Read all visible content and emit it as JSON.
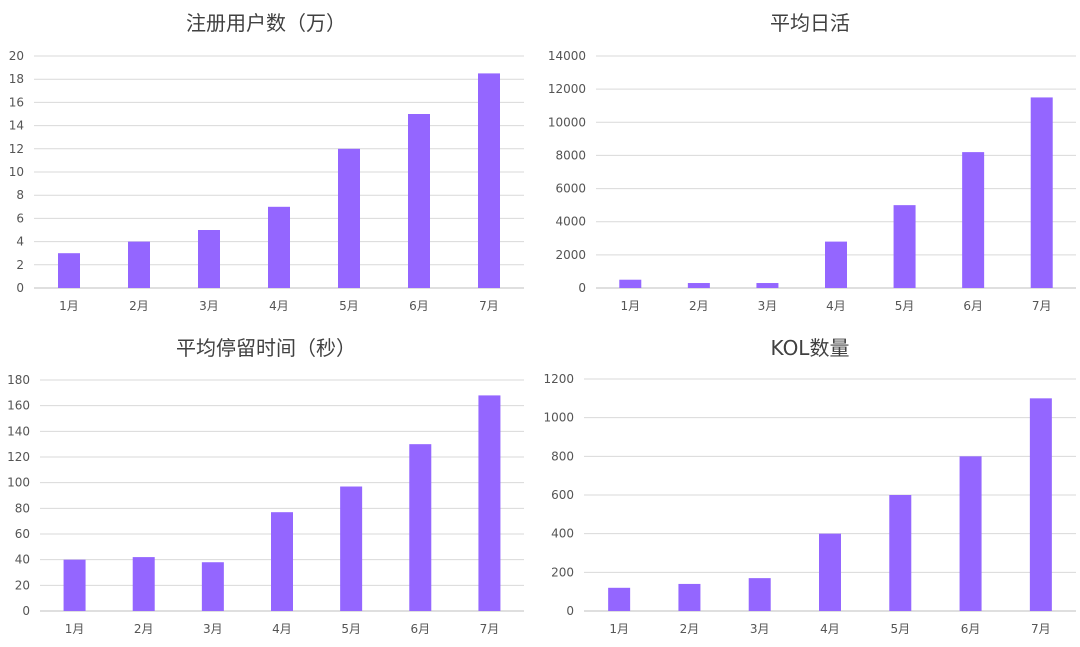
{
  "colors": {
    "bar": "#9466FF",
    "grid": "#D9D9D9",
    "text": "#404040"
  },
  "chart_data": [
    {
      "type": "bar",
      "title": "注册用户数（万）",
      "categories": [
        "1月",
        "2月",
        "3月",
        "4月",
        "5月",
        "6月",
        "7月"
      ],
      "values": [
        3,
        4,
        5,
        7,
        12,
        15,
        18.5
      ],
      "ylim": [
        0,
        20
      ],
      "yticks": [
        "0",
        "2",
        "4",
        "6",
        "8",
        "10",
        "12",
        "14",
        "16",
        "18",
        "20"
      ],
      "grid": true
    },
    {
      "type": "bar",
      "title": "平均日活",
      "categories": [
        "1月",
        "2月",
        "3月",
        "4月",
        "5月",
        "6月",
        "7月"
      ],
      "values": [
        500,
        300,
        300,
        2800,
        5000,
        8200,
        11500
      ],
      "ylim": [
        0,
        14000
      ],
      "yticks": [
        "0",
        "2000",
        "4000",
        "6000",
        "8000",
        "10000",
        "12000",
        "14000"
      ],
      "grid": true
    },
    {
      "type": "bar",
      "title": "平均停留时间（秒）",
      "categories": [
        "1月",
        "2月",
        "3月",
        "4月",
        "5月",
        "6月",
        "7月"
      ],
      "values": [
        40,
        42,
        38,
        77,
        97,
        130,
        168
      ],
      "ylim": [
        0,
        180
      ],
      "yticks": [
        "0",
        "20",
        "40",
        "60",
        "80",
        "100",
        "120",
        "140",
        "160",
        "180"
      ],
      "grid": true
    },
    {
      "type": "bar",
      "title": "KOL数量",
      "categories": [
        "1月",
        "2月",
        "3月",
        "4月",
        "5月",
        "6月",
        "7月"
      ],
      "values": [
        120,
        140,
        170,
        400,
        600,
        800,
        1100
      ],
      "ylim": [
        0,
        1200
      ],
      "yticks": [
        "0",
        "200",
        "400",
        "600",
        "800",
        "1000",
        "1200"
      ],
      "grid": true
    }
  ]
}
